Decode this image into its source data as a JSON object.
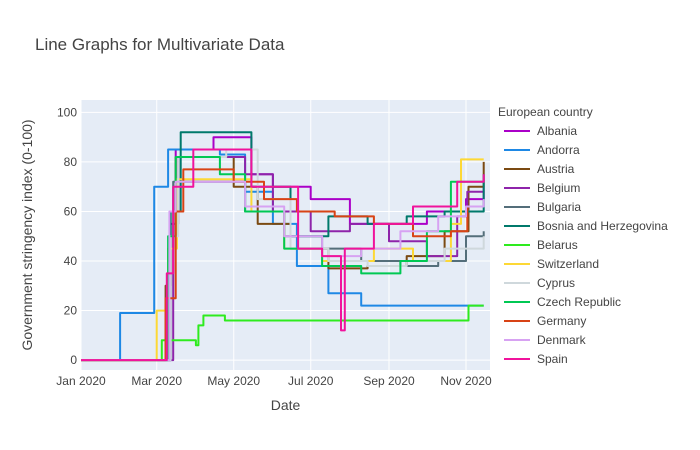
{
  "chart_data": {
    "type": "line",
    "title": "Line Graphs for Multivariate Data",
    "xlabel": "Date",
    "ylabel": "Government stringency index (0-100)",
    "x_range": [
      "2020-01-01",
      "2020-11-20"
    ],
    "ylim": [
      -4,
      105
    ],
    "x_ticks": [
      {
        "date": "2020-01-01",
        "label": "Jan 2020"
      },
      {
        "date": "2020-03-01",
        "label": "Mar 2020"
      },
      {
        "date": "2020-05-01",
        "label": "May 2020"
      },
      {
        "date": "2020-07-01",
        "label": "Jul 2020"
      },
      {
        "date": "2020-09-01",
        "label": "Sep 2020"
      },
      {
        "date": "2020-11-01",
        "label": "Nov 2020"
      }
    ],
    "y_ticks": [
      0,
      20,
      40,
      60,
      80,
      100
    ],
    "grid": true,
    "plot_background": "#E5ECF6",
    "legend_title": "European country",
    "legend_position": "right",
    "series": [
      {
        "name": "Albania",
        "color": "#AA00C8",
        "points": [
          [
            "2020-01-01",
            0
          ],
          [
            "2020-03-09",
            0
          ],
          [
            "2020-03-12",
            55
          ],
          [
            "2020-03-16",
            85
          ],
          [
            "2020-04-15",
            90
          ],
          [
            "2020-05-15",
            75
          ],
          [
            "2020-06-01",
            70
          ],
          [
            "2020-07-01",
            65
          ],
          [
            "2020-08-01",
            55
          ],
          [
            "2020-09-01",
            55
          ],
          [
            "2020-10-01",
            60
          ],
          [
            "2020-11-01",
            65
          ],
          [
            "2020-11-15",
            68
          ]
        ]
      },
      {
        "name": "Andorra",
        "color": "#1E88E5",
        "points": [
          [
            "2020-01-01",
            0
          ],
          [
            "2020-01-25",
            0
          ],
          [
            "2020-02-01",
            19
          ],
          [
            "2020-02-24",
            19
          ],
          [
            "2020-02-28",
            70
          ],
          [
            "2020-03-05",
            70
          ],
          [
            "2020-03-10",
            85
          ],
          [
            "2020-04-20",
            83
          ],
          [
            "2020-05-10",
            68
          ],
          [
            "2020-06-01",
            55
          ],
          [
            "2020-06-20",
            38
          ],
          [
            "2020-07-15",
            27
          ],
          [
            "2020-08-10",
            22
          ],
          [
            "2020-11-15",
            22
          ]
        ]
      },
      {
        "name": "Austria",
        "color": "#7B4A12",
        "points": [
          [
            "2020-01-01",
            0
          ],
          [
            "2020-03-04",
            0
          ],
          [
            "2020-03-08",
            30
          ],
          [
            "2020-03-12",
            60
          ],
          [
            "2020-03-16",
            82
          ],
          [
            "2020-04-14",
            82
          ],
          [
            "2020-05-01",
            70
          ],
          [
            "2020-05-20",
            55
          ],
          [
            "2020-06-15",
            45
          ],
          [
            "2020-07-15",
            37
          ],
          [
            "2020-08-15",
            38
          ],
          [
            "2020-09-15",
            42
          ],
          [
            "2020-10-15",
            52
          ],
          [
            "2020-11-03",
            70
          ],
          [
            "2020-11-15",
            80
          ]
        ]
      },
      {
        "name": "Belgium",
        "color": "#8E24AA",
        "points": [
          [
            "2020-01-01",
            0
          ],
          [
            "2020-03-09",
            0
          ],
          [
            "2020-03-14",
            55
          ],
          [
            "2020-03-18",
            82
          ],
          [
            "2020-04-20",
            82
          ],
          [
            "2020-05-10",
            75
          ],
          [
            "2020-06-01",
            60
          ],
          [
            "2020-07-01",
            52
          ],
          [
            "2020-08-01",
            55
          ],
          [
            "2020-09-01",
            48
          ],
          [
            "2020-10-01",
            42
          ],
          [
            "2020-10-25",
            58
          ],
          [
            "2020-11-02",
            68
          ],
          [
            "2020-11-15",
            70
          ]
        ]
      },
      {
        "name": "Bulgaria",
        "color": "#546E7A",
        "points": [
          [
            "2020-01-01",
            0
          ],
          [
            "2020-03-06",
            0
          ],
          [
            "2020-03-10",
            45
          ],
          [
            "2020-03-14",
            72
          ],
          [
            "2020-04-15",
            72
          ],
          [
            "2020-05-10",
            60
          ],
          [
            "2020-06-10",
            50
          ],
          [
            "2020-07-10",
            45
          ],
          [
            "2020-08-10",
            40
          ],
          [
            "2020-09-10",
            38
          ],
          [
            "2020-10-10",
            40
          ],
          [
            "2020-11-01",
            50
          ],
          [
            "2020-11-15",
            52
          ]
        ]
      },
      {
        "name": "Bosnia and Herzegovina",
        "color": "#00796B",
        "points": [
          [
            "2020-01-01",
            0
          ],
          [
            "2020-03-08",
            0
          ],
          [
            "2020-03-12",
            60
          ],
          [
            "2020-03-20",
            92
          ],
          [
            "2020-04-25",
            92
          ],
          [
            "2020-05-15",
            70
          ],
          [
            "2020-06-15",
            50
          ],
          [
            "2020-07-15",
            58
          ],
          [
            "2020-08-15",
            55
          ],
          [
            "2020-09-15",
            58
          ],
          [
            "2020-10-15",
            60
          ],
          [
            "2020-11-15",
            75
          ]
        ]
      },
      {
        "name": "Belarus",
        "color": "#2EEB1E",
        "points": [
          [
            "2020-01-01",
            0
          ],
          [
            "2020-03-03",
            0
          ],
          [
            "2020-03-05",
            8
          ],
          [
            "2020-03-30",
            8
          ],
          [
            "2020-04-01",
            6
          ],
          [
            "2020-04-03",
            14
          ],
          [
            "2020-04-07",
            18
          ],
          [
            "2020-04-20",
            18
          ],
          [
            "2020-04-24",
            16
          ],
          [
            "2020-11-01",
            16
          ],
          [
            "2020-11-03",
            22
          ],
          [
            "2020-11-15",
            22
          ]
        ]
      },
      {
        "name": "Switzerland",
        "color": "#FDD835",
        "points": [
          [
            "2020-01-01",
            0
          ],
          [
            "2020-02-27",
            0
          ],
          [
            "2020-03-01",
            20
          ],
          [
            "2020-03-10",
            45
          ],
          [
            "2020-03-17",
            73
          ],
          [
            "2020-04-25",
            73
          ],
          [
            "2020-05-15",
            60
          ],
          [
            "2020-06-10",
            45
          ],
          [
            "2020-07-10",
            40
          ],
          [
            "2020-08-20",
            45
          ],
          [
            "2020-09-20",
            40
          ],
          [
            "2020-10-20",
            55
          ],
          [
            "2020-10-28",
            81
          ],
          [
            "2020-11-15",
            81
          ]
        ]
      },
      {
        "name": "Cyprus",
        "color": "#CFD8DC",
        "points": [
          [
            "2020-01-01",
            0
          ],
          [
            "2020-03-08",
            0
          ],
          [
            "2020-03-12",
            50
          ],
          [
            "2020-03-18",
            82
          ],
          [
            "2020-04-25",
            85
          ],
          [
            "2020-05-20",
            65
          ],
          [
            "2020-06-15",
            45
          ],
          [
            "2020-07-15",
            40
          ],
          [
            "2020-08-15",
            38
          ],
          [
            "2020-09-15",
            40
          ],
          [
            "2020-10-15",
            45
          ],
          [
            "2020-11-15",
            50
          ]
        ]
      },
      {
        "name": "Czech Republic",
        "color": "#00C853",
        "points": [
          [
            "2020-01-01",
            0
          ],
          [
            "2020-03-01",
            0
          ],
          [
            "2020-03-10",
            50
          ],
          [
            "2020-03-16",
            82
          ],
          [
            "2020-04-20",
            75
          ],
          [
            "2020-05-10",
            60
          ],
          [
            "2020-06-10",
            45
          ],
          [
            "2020-07-10",
            38
          ],
          [
            "2020-08-10",
            35
          ],
          [
            "2020-09-10",
            40
          ],
          [
            "2020-10-01",
            52
          ],
          [
            "2020-10-20",
            72
          ],
          [
            "2020-11-15",
            72
          ]
        ]
      },
      {
        "name": "Germany",
        "color": "#D84315",
        "points": [
          [
            "2020-01-01",
            0
          ],
          [
            "2020-02-28",
            0
          ],
          [
            "2020-03-08",
            25
          ],
          [
            "2020-03-16",
            60
          ],
          [
            "2020-03-22",
            77
          ],
          [
            "2020-05-01",
            72
          ],
          [
            "2020-05-25",
            65
          ],
          [
            "2020-06-20",
            60
          ],
          [
            "2020-07-20",
            58
          ],
          [
            "2020-08-20",
            55
          ],
          [
            "2020-09-20",
            50
          ],
          [
            "2020-10-20",
            52
          ],
          [
            "2020-11-02",
            62
          ],
          [
            "2020-11-15",
            62
          ]
        ]
      },
      {
        "name": "Denmark",
        "color": "#D7A2F2",
        "points": [
          [
            "2020-01-01",
            0
          ],
          [
            "2020-03-05",
            0
          ],
          [
            "2020-03-11",
            60
          ],
          [
            "2020-03-16",
            72
          ],
          [
            "2020-04-15",
            72
          ],
          [
            "2020-05-10",
            62
          ],
          [
            "2020-06-10",
            50
          ],
          [
            "2020-07-10",
            42
          ],
          [
            "2020-08-10",
            45
          ],
          [
            "2020-09-10",
            52
          ],
          [
            "2020-10-10",
            58
          ],
          [
            "2020-11-01",
            62
          ],
          [
            "2020-11-15",
            65
          ]
        ]
      },
      {
        "name": "Spain",
        "color": "#F0139C",
        "points": [
          [
            "2020-01-01",
            0
          ],
          [
            "2020-03-01",
            0
          ],
          [
            "2020-03-09",
            35
          ],
          [
            "2020-03-14",
            70
          ],
          [
            "2020-03-30",
            85
          ],
          [
            "2020-04-25",
            85
          ],
          [
            "2020-05-15",
            70
          ],
          [
            "2020-06-21",
            45
          ],
          [
            "2020-07-10",
            42
          ],
          [
            "2020-07-25",
            12
          ],
          [
            "2020-07-28",
            45
          ],
          [
            "2020-08-20",
            55
          ],
          [
            "2020-09-20",
            62
          ],
          [
            "2020-10-25",
            72
          ],
          [
            "2020-11-15",
            75
          ]
        ]
      }
    ]
  }
}
